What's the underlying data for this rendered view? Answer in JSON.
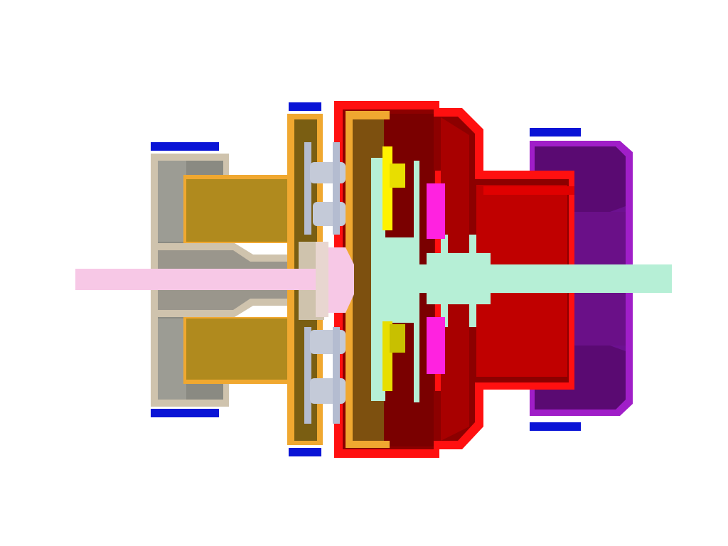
{
  "figure": {
    "description_text": "",
    "colors": {
      "background": "#ffffff",
      "housing_beige": "#cfc3ad",
      "housing_beige_shadow": "#8a8a82",
      "orange_frame": "#f0a830",
      "orange_fill": "#b08a1e",
      "orange_dark": "#7a5e12",
      "red_housing": "#ff1010",
      "red_dark": "#7a0000",
      "red_mid": "#b00000",
      "purple_housing": "#a01ec8",
      "purple_dark": "#5a0a72",
      "purple_mid": "#7a14a0",
      "pink_shaft": "#f7c8e6",
      "mint_shaft": "#b6efd6",
      "blue_seal": "#0a14d6",
      "gear_grey": "#b4bcd0",
      "yellow_part": "#fff200",
      "magenta_part": "#ff22e0"
    },
    "parts": [
      {
        "name": "input-housing",
        "color": "housing_beige"
      },
      {
        "name": "input-shaft",
        "color": "pink_shaft"
      },
      {
        "name": "carrier-plate",
        "color": "orange_frame"
      },
      {
        "name": "planet-gears",
        "color": "gear_grey"
      },
      {
        "name": "gearbox-housing",
        "color": "red_housing"
      },
      {
        "name": "output-shaft",
        "color": "mint_shaft"
      },
      {
        "name": "output-housing",
        "color": "purple_housing"
      },
      {
        "name": "seal-rings",
        "color": "blue_seal"
      },
      {
        "name": "yellow-gear",
        "color": "yellow_part"
      },
      {
        "name": "magenta-ring",
        "color": "magenta_part"
      }
    ]
  }
}
